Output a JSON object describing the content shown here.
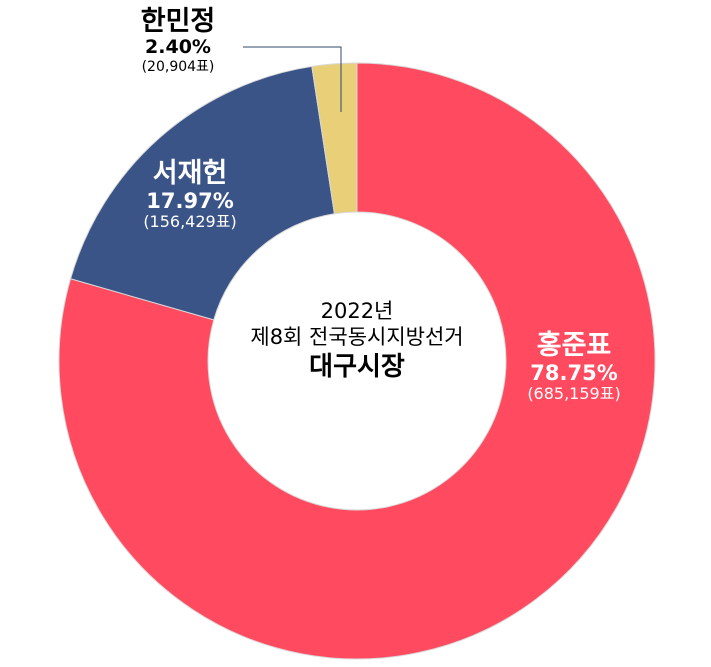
{
  "chart_data": {
    "type": "pie",
    "donut": true,
    "title_lines": [
      "2022년",
      "제8회 전국동시지방선거",
      "대구시장"
    ],
    "slices": [
      {
        "name": "홍준표",
        "percent_label": "78.75%",
        "votes_label": "(685,159표)",
        "value": 78.75,
        "color": "#FF4A5F",
        "text_color": "#ffffff"
      },
      {
        "name": "서재헌",
        "percent_label": "17.97%",
        "votes_label": "(156,429표)",
        "value": 17.97,
        "color": "#3B5488",
        "text_color": "#ffffff"
      },
      {
        "name": "한민정",
        "percent_label": "2.40%",
        "votes_label": "(20,904표)",
        "value": 2.4,
        "color": "#E8CF78",
        "text_color": "#000000"
      }
    ],
    "start": "top",
    "direction": "clockwise",
    "legend": "none"
  }
}
